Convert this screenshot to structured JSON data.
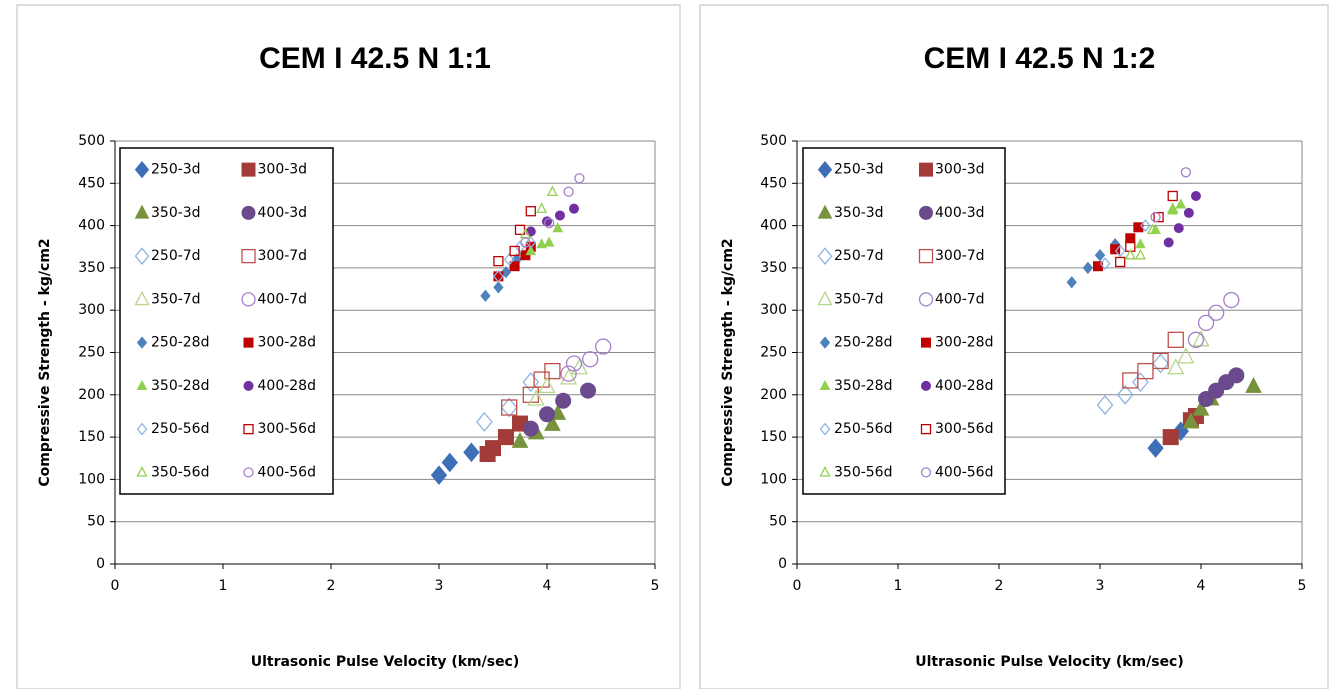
{
  "chart_data": [
    {
      "type": "scatter",
      "title": "CEM I 42.5 N 1:1",
      "xlabel": "Ultrasonic Pulse Velocity (km/sec)",
      "ylabel": "Compressive Strength - kg/cm2",
      "xlim": [
        0,
        5
      ],
      "ylim": [
        0,
        500
      ],
      "xticks": [
        0,
        1,
        2,
        3,
        4,
        5
      ],
      "yticks": [
        0,
        50,
        100,
        150,
        200,
        250,
        300,
        350,
        400,
        450,
        500
      ],
      "grid": true,
      "series": [
        {
          "name": "250-3d",
          "color": "#3d6fb6",
          "marker": "diamond",
          "filled": true,
          "size": "large",
          "x": [
            3.0,
            3.1,
            3.3
          ],
          "y": [
            105,
            120,
            132
          ]
        },
        {
          "name": "300-3d",
          "color": "#a33c38",
          "marker": "square",
          "filled": true,
          "size": "large",
          "x": [
            3.45,
            3.5,
            3.62,
            3.75
          ],
          "y": [
            130,
            137,
            150,
            166
          ]
        },
        {
          "name": "350-3d",
          "color": "#77933c",
          "marker": "triangle",
          "filled": true,
          "size": "large",
          "x": [
            3.75,
            3.9,
            4.05,
            4.1
          ],
          "y": [
            145,
            155,
            165,
            178
          ]
        },
        {
          "name": "400-3d",
          "color": "#6a4a8c",
          "marker": "circle",
          "filled": true,
          "size": "large",
          "x": [
            3.85,
            4.0,
            4.15,
            4.38
          ],
          "y": [
            160,
            177,
            193,
            205
          ]
        },
        {
          "name": "250-7d",
          "color": "#8eb4e3",
          "marker": "diamond",
          "filled": false,
          "size": "large",
          "x": [
            3.42,
            3.65,
            3.85
          ],
          "y": [
            168,
            185,
            215
          ]
        },
        {
          "name": "300-7d",
          "color": "#c0504d",
          "marker": "square",
          "filled": false,
          "size": "large",
          "x": [
            3.65,
            3.85,
            3.95,
            4.05
          ],
          "y": [
            185,
            200,
            218,
            228
          ]
        },
        {
          "name": "350-7d",
          "color": "#b5d68b",
          "marker": "triangle",
          "filled": false,
          "size": "large",
          "x": [
            3.9,
            4.0,
            4.2,
            4.3
          ],
          "y": [
            195,
            210,
            220,
            232
          ]
        },
        {
          "name": "400-7d",
          "color": "#a67fcc",
          "marker": "circle",
          "filled": false,
          "size": "large",
          "x": [
            4.2,
            4.25,
            4.4,
            4.52
          ],
          "y": [
            225,
            237,
            242,
            257
          ]
        },
        {
          "name": "250-28d",
          "color": "#4f81bd",
          "marker": "diamond",
          "filled": true,
          "size": "small",
          "x": [
            3.43,
            3.55,
            3.62,
            3.72
          ],
          "y": [
            317,
            327,
            345,
            360
          ]
        },
        {
          "name": "300-28d",
          "color": "#c00000",
          "marker": "square",
          "filled": true,
          "size": "small",
          "x": [
            3.55,
            3.7,
            3.8,
            3.85
          ],
          "y": [
            340,
            352,
            365,
            375
          ]
        },
        {
          "name": "350-28d",
          "color": "#92d050",
          "marker": "triangle",
          "filled": true,
          "size": "small",
          "x": [
            3.85,
            3.95,
            4.02,
            4.1
          ],
          "y": [
            370,
            378,
            380,
            397
          ]
        },
        {
          "name": "400-28d",
          "color": "#7030a0",
          "marker": "circle",
          "filled": true,
          "size": "small",
          "x": [
            3.85,
            4.0,
            4.12,
            4.25
          ],
          "y": [
            393,
            405,
            412,
            420
          ]
        },
        {
          "name": "250-56d",
          "color": "#8eb4e3",
          "marker": "diamond",
          "filled": false,
          "size": "small",
          "x": [
            3.55,
            3.65,
            3.75,
            3.85
          ],
          "y": [
            340,
            360,
            375,
            380
          ]
        },
        {
          "name": "300-56d",
          "color": "#c00000",
          "marker": "square",
          "filled": false,
          "size": "small",
          "x": [
            3.55,
            3.7,
            3.75,
            3.85
          ],
          "y": [
            358,
            370,
            395,
            417
          ]
        },
        {
          "name": "350-56d",
          "color": "#92d050",
          "marker": "triangle",
          "filled": false,
          "size": "small",
          "x": [
            3.8,
            3.95,
            4.05
          ],
          "y": [
            390,
            420,
            440
          ]
        },
        {
          "name": "400-56d",
          "color": "#a67fcc",
          "marker": "circle",
          "filled": false,
          "size": "small",
          "x": [
            3.8,
            4.02,
            4.2,
            4.3
          ],
          "y": [
            380,
            403,
            440,
            456
          ]
        }
      ]
    },
    {
      "type": "scatter",
      "title": "CEM I 42.5 N 1:2",
      "xlabel": "Ultrasonic Pulse Velocity (km/sec)",
      "ylabel": "Compressive Strength - kg/cm2",
      "xlim": [
        0,
        5
      ],
      "ylim": [
        0,
        500
      ],
      "xticks": [
        0,
        1,
        2,
        3,
        4,
        5
      ],
      "yticks": [
        0,
        50,
        100,
        150,
        200,
        250,
        300,
        350,
        400,
        450,
        500
      ],
      "grid": true,
      "series": [
        {
          "name": "250-3d",
          "color": "#3d6fb6",
          "marker": "diamond",
          "filled": true,
          "size": "large",
          "x": [
            3.55,
            3.8
          ],
          "y": [
            137,
            157
          ]
        },
        {
          "name": "300-3d",
          "color": "#a33c38",
          "marker": "square",
          "filled": true,
          "size": "large",
          "x": [
            3.7,
            3.9,
            3.95
          ],
          "y": [
            150,
            170,
            175
          ]
        },
        {
          "name": "350-3d",
          "color": "#77933c",
          "marker": "triangle",
          "filled": true,
          "size": "large",
          "x": [
            3.9,
            4.0,
            4.1,
            4.52
          ],
          "y": [
            168,
            183,
            195,
            210
          ]
        },
        {
          "name": "400-3d",
          "color": "#6a4a8c",
          "marker": "circle",
          "filled": true,
          "size": "large",
          "x": [
            4.05,
            4.15,
            4.25,
            4.35
          ],
          "y": [
            195,
            205,
            215,
            223
          ]
        },
        {
          "name": "250-7d",
          "color": "#8eb4e3",
          "marker": "diamond",
          "filled": false,
          "size": "large",
          "x": [
            3.05,
            3.25,
            3.4,
            3.6
          ],
          "y": [
            188,
            200,
            215,
            237
          ]
        },
        {
          "name": "300-7d",
          "color": "#c0504d",
          "marker": "square",
          "filled": false,
          "size": "large",
          "x": [
            3.3,
            3.45,
            3.6,
            3.75
          ],
          "y": [
            217,
            228,
            240,
            265
          ]
        },
        {
          "name": "350-7d",
          "color": "#b5d68b",
          "marker": "triangle",
          "filled": false,
          "size": "large",
          "x": [
            3.75,
            3.85,
            4.0
          ],
          "y": [
            232,
            245,
            265
          ]
        },
        {
          "name": "400-7d",
          "color": "#a67fcc",
          "marker": "circle",
          "filled": false,
          "size": "large",
          "x": [
            3.95,
            4.05,
            4.15,
            4.3
          ],
          "y": [
            265,
            285,
            297,
            312
          ]
        },
        {
          "name": "250-28d",
          "color": "#4f81bd",
          "marker": "diamond",
          "filled": true,
          "size": "small",
          "x": [
            2.72,
            2.88,
            3.0,
            3.15
          ],
          "y": [
            333,
            350,
            365,
            378
          ]
        },
        {
          "name": "300-28d",
          "color": "#c00000",
          "marker": "square",
          "filled": true,
          "size": "small",
          "x": [
            2.98,
            3.15,
            3.3,
            3.38
          ],
          "y": [
            352,
            372,
            385,
            398
          ]
        },
        {
          "name": "350-28d",
          "color": "#92d050",
          "marker": "triangle",
          "filled": true,
          "size": "small",
          "x": [
            3.4,
            3.55,
            3.72,
            3.8
          ],
          "y": [
            378,
            395,
            418,
            425
          ]
        },
        {
          "name": "400-28d",
          "color": "#7030a0",
          "marker": "circle",
          "filled": true,
          "size": "small",
          "x": [
            3.68,
            3.78,
            3.88,
            3.95
          ],
          "y": [
            380,
            397,
            415,
            435
          ]
        },
        {
          "name": "250-56d",
          "color": "#8eb4e3",
          "marker": "diamond",
          "filled": false,
          "size": "small",
          "x": [
            3.05,
            3.2,
            3.45
          ],
          "y": [
            355,
            370,
            400
          ]
        },
        {
          "name": "300-56d",
          "color": "#c00000",
          "marker": "square",
          "filled": false,
          "size": "small",
          "x": [
            3.2,
            3.3,
            3.58,
            3.72
          ],
          "y": [
            357,
            375,
            410,
            435
          ]
        },
        {
          "name": "350-56d",
          "color": "#92d050",
          "marker": "triangle",
          "filled": false,
          "size": "small",
          "x": [
            3.3,
            3.4,
            3.52,
            3.72
          ],
          "y": [
            365,
            365,
            395,
            420
          ]
        },
        {
          "name": "400-56d",
          "color": "#a67fcc",
          "marker": "circle",
          "filled": false,
          "size": "small",
          "x": [
            3.55,
            3.85
          ],
          "y": [
            410,
            463
          ]
        }
      ]
    }
  ]
}
